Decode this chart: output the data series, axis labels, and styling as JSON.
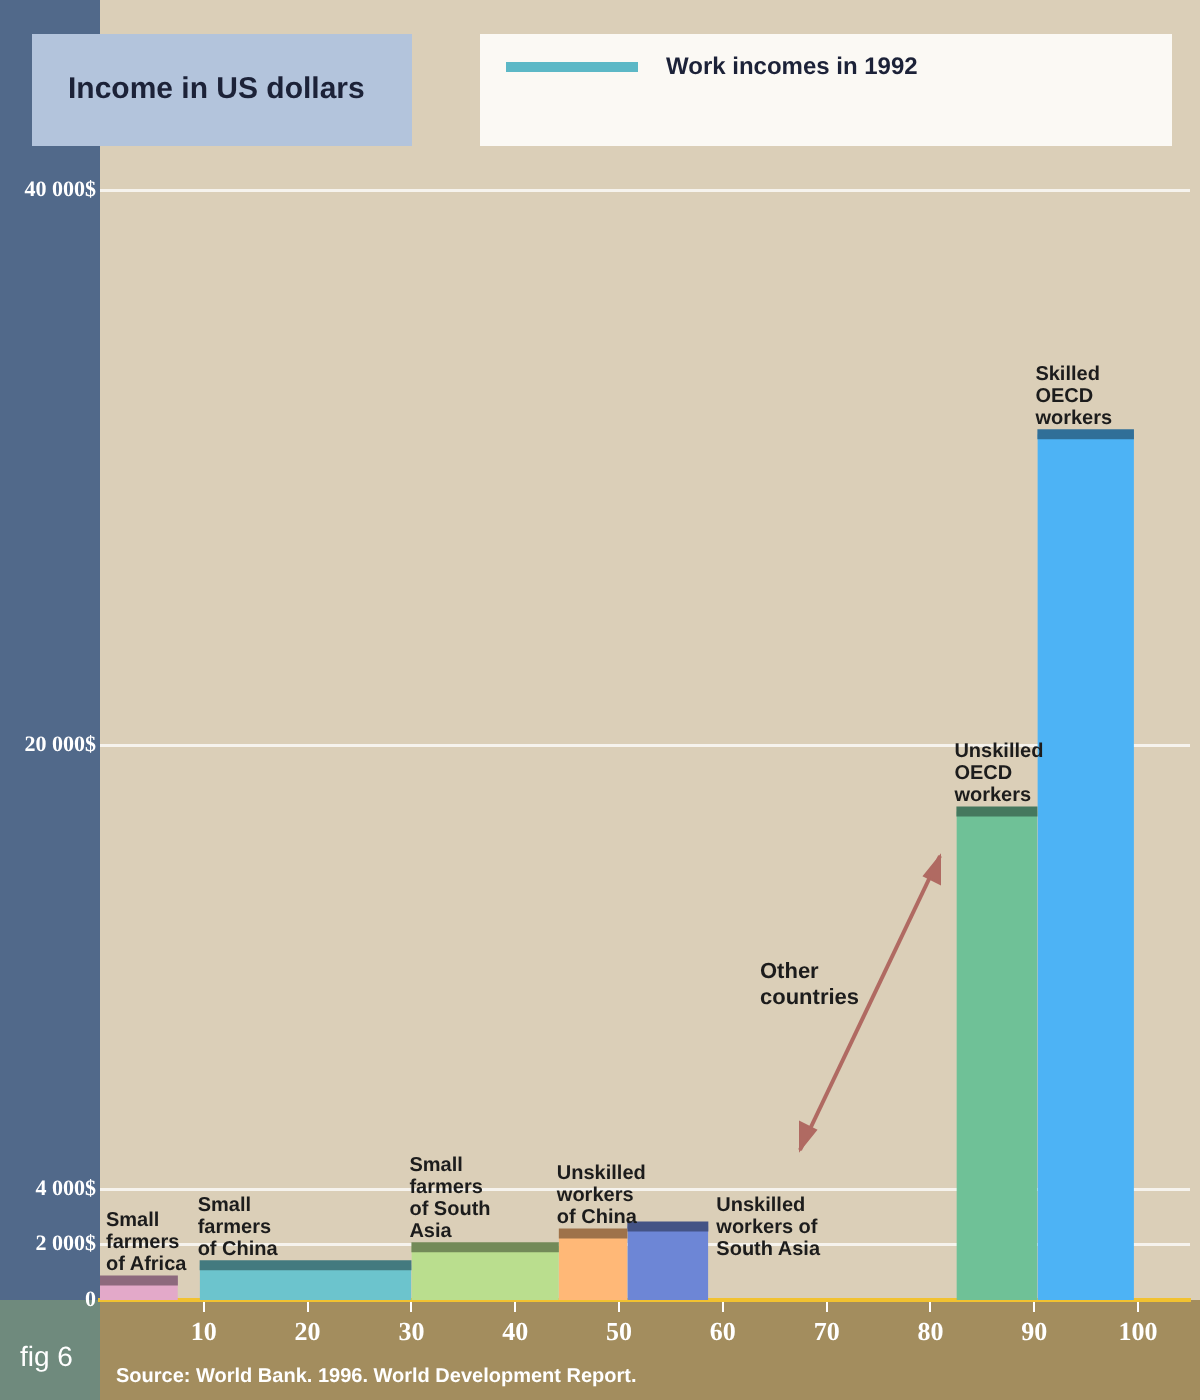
{
  "chart_data": {
    "type": "area",
    "ylabel": "Income in US dollars",
    "legend_title": "Work incomes in 1992",
    "series": [
      {
        "name": "Small farmers of Africa",
        "color": "#e3a9c9",
        "x": [
          0,
          7.5
        ],
        "values": [
          700,
          700
        ]
      },
      {
        "name": "Small farmers of China",
        "color": "#6cc4cd",
        "x": [
          9.6,
          30
        ],
        "values": [
          1250,
          1250
        ]
      },
      {
        "name": "Small farmers of South Asia",
        "color": "#bade8e",
        "x": [
          30,
          44.2
        ],
        "values": [
          1900,
          1900
        ]
      },
      {
        "name": "Unskilled workers of China",
        "color": "#ffb877",
        "x": [
          44.2,
          50.8
        ],
        "values": [
          2400,
          2400
        ]
      },
      {
        "name": "Unskilled workers of South Asia",
        "color": "#6d86d6",
        "x": [
          50.8,
          58.6
        ],
        "values": [
          2650,
          2650
        ]
      },
      {
        "name": "Unskilled OECD workers",
        "color": "#6fc197",
        "x": [
          82.5,
          90.3
        ],
        "values": [
          17600,
          17600
        ]
      },
      {
        "name": "Skilled OECD workers",
        "color": "#4db3f5",
        "x": [
          90.3,
          99.6
        ],
        "values": [
          31200,
          31200
        ]
      }
    ],
    "xlim": [
      0,
      105
    ],
    "xticks": [
      10,
      20,
      30,
      40,
      50,
      60,
      70,
      80,
      90,
      100
    ],
    "ylim": [
      0,
      40000
    ],
    "yticks": [
      {
        "value": 0,
        "label": "0"
      },
      {
        "value": 2000,
        "label": "2 000$"
      },
      {
        "value": 4000,
        "label": "4 000$"
      },
      {
        "value": 20000,
        "label": "20 000$"
      },
      {
        "value": 40000,
        "label": "40 000$"
      }
    ],
    "grid": "y",
    "annotations": [
      "Other countries",
      "fig 6",
      "Source:  World Bank. 1996. World Development Report."
    ]
  }
}
